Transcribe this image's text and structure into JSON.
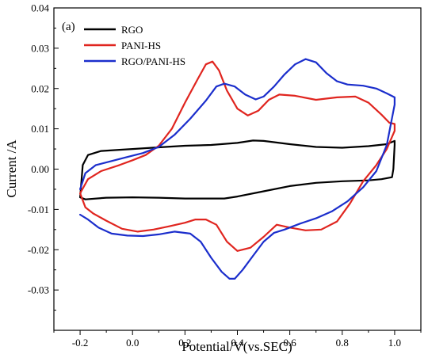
{
  "chart_data": {
    "type": "line",
    "panel_label": "(a)",
    "title": "",
    "xlabel": "Potential/V(vs.SEC)",
    "ylabel": "Current /A",
    "xlim": [
      -0.3,
      1.1
    ],
    "ylim": [
      -0.04,
      0.04
    ],
    "xticks": [
      -0.2,
      0.0,
      0.2,
      0.4,
      0.6,
      0.8,
      1.0
    ],
    "xtick_labels": [
      "-0.2",
      "0.0",
      "0.2",
      "0.4",
      "0.6",
      "0.8",
      "1.0"
    ],
    "yticks": [
      -0.03,
      -0.02,
      -0.01,
      0.0,
      0.01,
      0.02,
      0.03,
      0.04
    ],
    "ytick_labels": [
      "-0.03",
      "-0.02",
      "-0.01",
      "0.00",
      "0.01",
      "0.02",
      "0.03",
      "0.04"
    ],
    "grid": false,
    "legend_position": "top-left",
    "series": [
      {
        "name": "RGO",
        "color": "#000000",
        "points": [
          [
            -0.2,
            -0.007
          ],
          [
            -0.19,
            0.001
          ],
          [
            -0.17,
            0.0035
          ],
          [
            -0.12,
            0.0045
          ],
          [
            -0.05,
            0.0048
          ],
          [
            0.0,
            0.005
          ],
          [
            0.1,
            0.0054
          ],
          [
            0.2,
            0.0058
          ],
          [
            0.3,
            0.006
          ],
          [
            0.4,
            0.0065
          ],
          [
            0.46,
            0.0071
          ],
          [
            0.5,
            0.007
          ],
          [
            0.6,
            0.0062
          ],
          [
            0.7,
            0.0055
          ],
          [
            0.8,
            0.0053
          ],
          [
            0.9,
            0.0057
          ],
          [
            0.97,
            0.0062
          ],
          [
            1.0,
            0.007
          ],
          [
            1.0,
            0.006
          ],
          [
            0.995,
            0.0
          ],
          [
            0.99,
            -0.002
          ],
          [
            0.95,
            -0.0025
          ],
          [
            0.9,
            -0.0028
          ],
          [
            0.8,
            -0.003
          ],
          [
            0.7,
            -0.0034
          ],
          [
            0.6,
            -0.0042
          ],
          [
            0.5,
            -0.0055
          ],
          [
            0.4,
            -0.0068
          ],
          [
            0.35,
            -0.0073
          ],
          [
            0.3,
            -0.0073
          ],
          [
            0.2,
            -0.0073
          ],
          [
            0.1,
            -0.0071
          ],
          [
            0.0,
            -0.007
          ],
          [
            -0.1,
            -0.0071
          ],
          [
            -0.18,
            -0.0075
          ],
          [
            -0.2,
            -0.007
          ]
        ]
      },
      {
        "name": "PANI-HS",
        "color": "#e0251f",
        "points": [
          [
            -0.2,
            -0.006
          ],
          [
            -0.17,
            -0.0025
          ],
          [
            -0.12,
            -0.0005
          ],
          [
            -0.05,
            0.001
          ],
          [
            0.0,
            0.0022
          ],
          [
            0.05,
            0.0035
          ],
          [
            0.1,
            0.0058
          ],
          [
            0.15,
            0.01
          ],
          [
            0.2,
            0.0165
          ],
          [
            0.25,
            0.0225
          ],
          [
            0.28,
            0.026
          ],
          [
            0.305,
            0.0267
          ],
          [
            0.33,
            0.0245
          ],
          [
            0.36,
            0.0195
          ],
          [
            0.4,
            0.015
          ],
          [
            0.44,
            0.0133
          ],
          [
            0.48,
            0.0145
          ],
          [
            0.52,
            0.0172
          ],
          [
            0.56,
            0.0185
          ],
          [
            0.62,
            0.0182
          ],
          [
            0.7,
            0.0172
          ],
          [
            0.78,
            0.0178
          ],
          [
            0.85,
            0.018
          ],
          [
            0.9,
            0.0165
          ],
          [
            0.95,
            0.0135
          ],
          [
            0.98,
            0.0115
          ],
          [
            1.0,
            0.0112
          ],
          [
            1.0,
            0.0095
          ],
          [
            0.97,
            0.005
          ],
          [
            0.93,
            0.001
          ],
          [
            0.88,
            -0.003
          ],
          [
            0.83,
            -0.0085
          ],
          [
            0.78,
            -0.013
          ],
          [
            0.72,
            -0.015
          ],
          [
            0.66,
            -0.0152
          ],
          [
            0.6,
            -0.0145
          ],
          [
            0.55,
            -0.0138
          ],
          [
            0.5,
            -0.0168
          ],
          [
            0.45,
            -0.0195
          ],
          [
            0.4,
            -0.0203
          ],
          [
            0.36,
            -0.018
          ],
          [
            0.32,
            -0.0138
          ],
          [
            0.28,
            -0.0125
          ],
          [
            0.24,
            -0.0125
          ],
          [
            0.2,
            -0.0133
          ],
          [
            0.14,
            -0.0142
          ],
          [
            0.08,
            -0.015
          ],
          [
            0.02,
            -0.0155
          ],
          [
            -0.04,
            -0.0148
          ],
          [
            -0.1,
            -0.0128
          ],
          [
            -0.15,
            -0.011
          ],
          [
            -0.18,
            -0.0095
          ],
          [
            -0.2,
            -0.006
          ]
        ]
      },
      {
        "name": "RGO/PANI-HS",
        "color": "#1b2ecc",
        "points": [
          [
            -0.2,
            -0.005
          ],
          [
            -0.18,
            -0.001
          ],
          [
            -0.14,
            0.001
          ],
          [
            -0.08,
            0.002
          ],
          [
            -0.02,
            0.003
          ],
          [
            0.04,
            0.004
          ],
          [
            0.1,
            0.0055
          ],
          [
            0.16,
            0.0085
          ],
          [
            0.22,
            0.0125
          ],
          [
            0.28,
            0.017
          ],
          [
            0.32,
            0.0205
          ],
          [
            0.35,
            0.0212
          ],
          [
            0.39,
            0.0205
          ],
          [
            0.43,
            0.0185
          ],
          [
            0.47,
            0.0173
          ],
          [
            0.5,
            0.018
          ],
          [
            0.54,
            0.0205
          ],
          [
            0.58,
            0.0235
          ],
          [
            0.62,
            0.026
          ],
          [
            0.66,
            0.0273
          ],
          [
            0.7,
            0.0265
          ],
          [
            0.74,
            0.0238
          ],
          [
            0.78,
            0.0218
          ],
          [
            0.82,
            0.021
          ],
          [
            0.88,
            0.0207
          ],
          [
            0.93,
            0.02
          ],
          [
            0.97,
            0.0188
          ],
          [
            1.0,
            0.0178
          ],
          [
            1.0,
            0.016
          ],
          [
            0.97,
            0.006
          ],
          [
            0.93,
            -0.0005
          ],
          [
            0.88,
            -0.0045
          ],
          [
            0.82,
            -0.008
          ],
          [
            0.76,
            -0.0105
          ],
          [
            0.7,
            -0.0122
          ],
          [
            0.64,
            -0.0135
          ],
          [
            0.58,
            -0.015
          ],
          [
            0.54,
            -0.0158
          ],
          [
            0.5,
            -0.018
          ],
          [
            0.46,
            -0.0215
          ],
          [
            0.42,
            -0.025
          ],
          [
            0.39,
            -0.0272
          ],
          [
            0.37,
            -0.0272
          ],
          [
            0.34,
            -0.0255
          ],
          [
            0.3,
            -0.022
          ],
          [
            0.26,
            -0.018
          ],
          [
            0.22,
            -0.016
          ],
          [
            0.16,
            -0.0155
          ],
          [
            0.1,
            -0.0162
          ],
          [
            0.04,
            -0.0166
          ],
          [
            -0.02,
            -0.0165
          ],
          [
            -0.08,
            -0.016
          ],
          [
            -0.13,
            -0.0145
          ],
          [
            -0.17,
            -0.0125
          ],
          [
            -0.2,
            -0.0113
          ]
        ]
      }
    ]
  }
}
